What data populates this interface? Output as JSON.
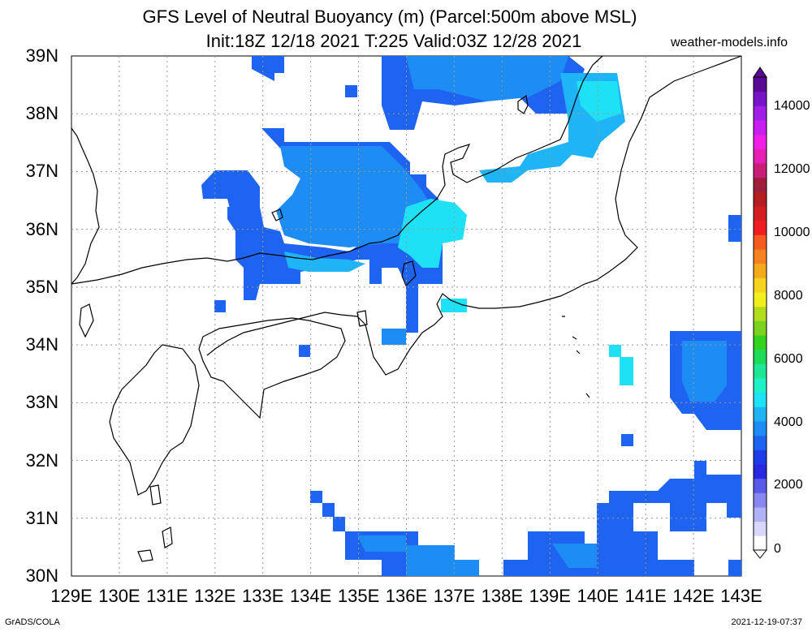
{
  "title_line1": "GFS Level of Neutral Buoyancy (m) (Parcel:500m above MSL)",
  "title_line2": "Init:18Z 12/18 2021 T:225 Valid:03Z 12/28 2021",
  "site": "weather-models.info",
  "footer_left": "GrADS/COLA",
  "footer_right": "2021-12-19-07:37",
  "lat_labels": [
    "39N",
    "38N",
    "37N",
    "36N",
    "35N",
    "34N",
    "33N",
    "32N",
    "31N",
    "30N"
  ],
  "lon_labels": [
    "129E",
    "130E",
    "131E",
    "132E",
    "133E",
    "134E",
    "135E",
    "136E",
    "137E",
    "138E",
    "139E",
    "140E",
    "141E",
    "142E",
    "143E"
  ],
  "colorbar_labels": [
    "14000",
    "12000",
    "10000",
    "8000",
    "6000",
    "4000",
    "2000",
    "0"
  ],
  "colors": {
    "deep_blue": "#1e3ce8",
    "blue": "#1e64f0",
    "mid_blue": "#1e8cf5",
    "light_blue": "#1eb4f5",
    "cyan": "#1ee1f5",
    "coast": "#000000"
  }
}
